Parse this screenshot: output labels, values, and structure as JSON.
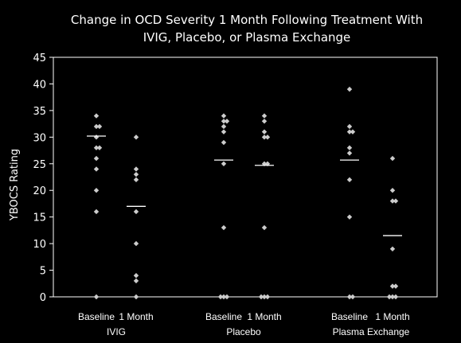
{
  "chart_data": {
    "type": "scatter",
    "title_lines": [
      "Change in OCD Severity 1 Month Following Treatment With",
      "IVIG, Placebo, or Plasma Exchange"
    ],
    "ylabel": "YBOCS Rating",
    "xlabel": "",
    "ylim": [
      0,
      45
    ],
    "yticks": [
      0,
      5,
      10,
      15,
      20,
      25,
      30,
      35,
      40,
      45
    ],
    "grid": false,
    "legend": "none",
    "colors": {
      "background": "#000000",
      "marker": "#cccccc",
      "axis": "#ffffff",
      "mean_line": "#ffffff"
    },
    "groups": [
      {
        "name": "IVIG",
        "columns": [
          {
            "label": "Baseline",
            "mean": 30.2,
            "values": [
              34,
              32,
              32,
              30,
              28,
              28,
              26,
              24,
              20,
              16,
              0
            ]
          },
          {
            "label": "1 Month",
            "mean": 17,
            "values": [
              30,
              24,
              23,
              22,
              16,
              10,
              4,
              3,
              0
            ]
          }
        ]
      },
      {
        "name": "Placebo",
        "columns": [
          {
            "label": "Baseline",
            "mean": 25.7,
            "values": [
              34,
              33,
              33,
              32,
              31,
              29,
              25,
              13,
              0,
              0,
              0
            ]
          },
          {
            "label": "1 Month",
            "mean": 24.7,
            "values": [
              34,
              33,
              31,
              30,
              30,
              25,
              25,
              13,
              0,
              0,
              0
            ]
          }
        ]
      },
      {
        "name": "Plasma Exchange",
        "columns": [
          {
            "label": "Baseline",
            "mean": 25.7,
            "values": [
              39,
              32,
              31,
              31,
              28,
              27,
              22,
              15,
              0,
              0
            ]
          },
          {
            "label": "1 Month",
            "mean": 11.5,
            "values": [
              26,
              20,
              18,
              18,
              9,
              2,
              2,
              0,
              0,
              0
            ]
          }
        ]
      }
    ]
  }
}
